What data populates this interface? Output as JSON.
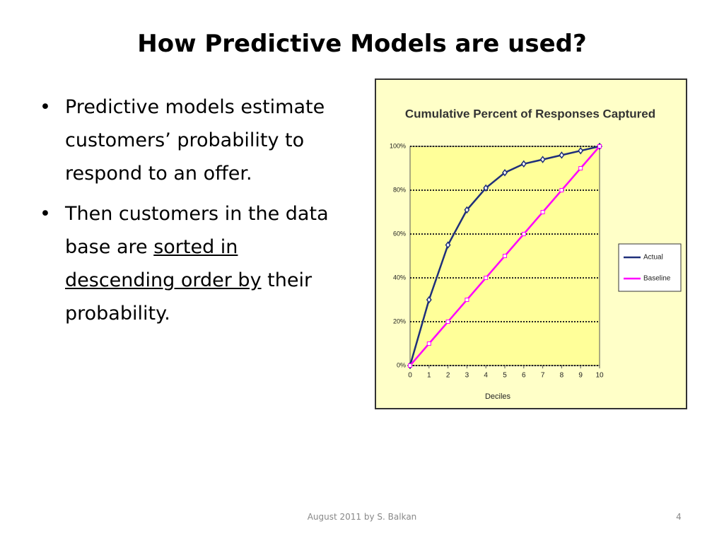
{
  "header": {
    "title": "How Predictive Models are used?"
  },
  "bullets": [
    "Predictive models estimate customers’ probability to respond to an offer."
  ],
  "bullets_2": {
    "before": "Then customers in the data base are ",
    "underlined": "sorted in descending order by",
    "after": " their probability."
  },
  "footer": {
    "text": "August 2011 by S. Balkan",
    "page": "4"
  },
  "chart_data": {
    "type": "line",
    "title": "Cumulative Percent of Responses Captured",
    "x_label": "Deciles",
    "x": [
      0,
      1,
      2,
      3,
      4,
      5,
      6,
      7,
      8,
      9,
      10
    ],
    "series": [
      {
        "name": "Actual",
        "color": "#1f2f7a",
        "values": [
          0,
          30,
          55,
          71,
          81,
          88,
          92,
          94,
          96,
          98,
          100
        ]
      },
      {
        "name": "Baseline",
        "color": "#ff00ff",
        "values": [
          0,
          10,
          20,
          30,
          40,
          50,
          60,
          70,
          80,
          90,
          100
        ]
      }
    ],
    "xlim": [
      0,
      10
    ],
    "xticks": [
      0,
      1,
      2,
      3,
      4,
      5,
      6,
      7,
      8,
      9,
      10
    ],
    "ylim": [
      0,
      100
    ],
    "yticks": [
      {
        "value": 0,
        "label": "0%"
      },
      {
        "value": 20,
        "label": "20%"
      },
      {
        "value": 40,
        "label": "40%"
      },
      {
        "value": 60,
        "label": "60%"
      },
      {
        "value": 80,
        "label": "80%"
      },
      {
        "value": 100,
        "label": "100%"
      }
    ],
    "grid": true,
    "legend": "right",
    "plot_color": "#ffff99"
  }
}
